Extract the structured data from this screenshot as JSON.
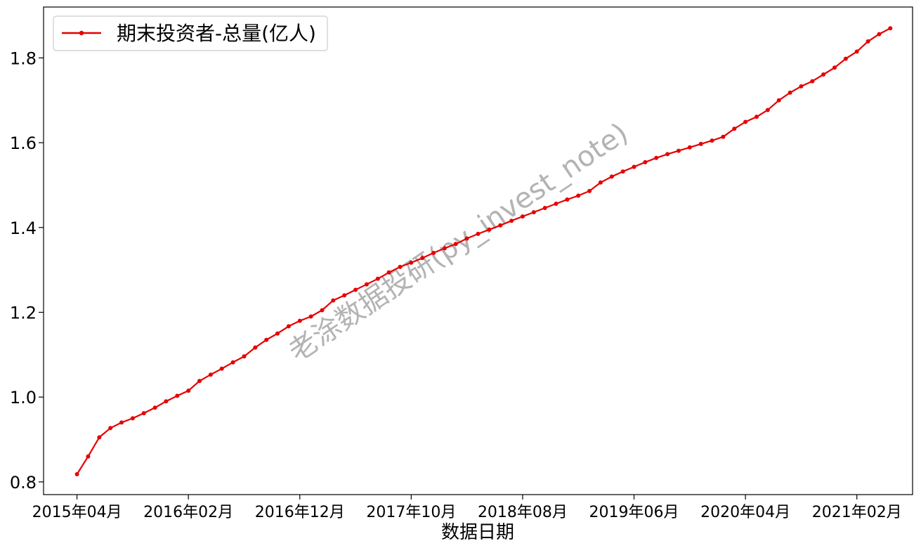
{
  "chart_data": {
    "type": "line",
    "title": "",
    "xlabel": "数据日期",
    "ylabel": "",
    "x_tick_labels": [
      "2015年04月",
      "2016年02月",
      "2016年12月",
      "2017年10月",
      "2018年08月",
      "2019年06月",
      "2020年04月",
      "2021年02月"
    ],
    "y_tick_labels": [
      "0.8",
      "1.0",
      "1.2",
      "1.4",
      "1.6",
      "1.8"
    ],
    "y_ticks": [
      0.8,
      1.0,
      1.2,
      1.4,
      1.6,
      1.8
    ],
    "ylim": [
      0.77,
      1.92
    ],
    "xlim": [
      "2015-01",
      "2021-07"
    ],
    "start_month": "2015-04",
    "legend": {
      "placement": "top-left",
      "entries": [
        "期末投资者-总量(亿人)"
      ]
    },
    "watermark": "老涂数据投研(py_invest_note)",
    "colors": {
      "line": "#e60000",
      "axis": "#000000"
    },
    "series": [
      {
        "name": "期末投资者-总量(亿人)",
        "values": [
          0.818,
          0.86,
          0.905,
          0.927,
          0.94,
          0.95,
          0.962,
          0.975,
          0.99,
          1.003,
          1.015,
          1.038,
          1.053,
          1.067,
          1.082,
          1.096,
          1.117,
          1.135,
          1.15,
          1.167,
          1.18,
          1.19,
          1.205,
          1.228,
          1.24,
          1.253,
          1.266,
          1.279,
          1.294,
          1.307,
          1.317,
          1.328,
          1.34,
          1.351,
          1.361,
          1.374,
          1.385,
          1.395,
          1.405,
          1.416,
          1.426,
          1.436,
          1.446,
          1.456,
          1.466,
          1.475,
          1.486,
          1.506,
          1.52,
          1.532,
          1.543,
          1.554,
          1.564,
          1.573,
          1.581,
          1.589,
          1.597,
          1.605,
          1.614,
          1.633,
          1.649,
          1.661,
          1.677,
          1.7,
          1.718,
          1.733,
          1.745,
          1.761,
          1.777,
          1.798,
          1.815,
          1.839,
          1.856,
          1.87
        ]
      }
    ]
  }
}
